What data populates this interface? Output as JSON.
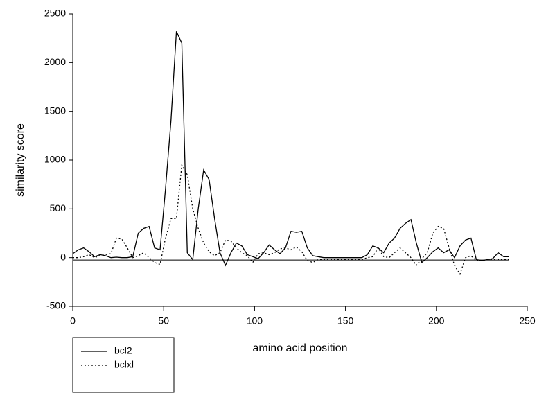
{
  "chart_data": {
    "type": "line",
    "xlabel": "amino acid position",
    "ylabel": "similarity score",
    "xlim": [
      0,
      250
    ],
    "xticks": [
      0,
      50,
      100,
      150,
      200,
      250
    ],
    "ylim": [
      -500,
      2500
    ],
    "yticks": [
      -500,
      0,
      500,
      1000,
      1500,
      2000,
      2500
    ],
    "reference_line": {
      "y": -25,
      "x": [
        0,
        240
      ]
    },
    "legend": "bottom-left",
    "x": [
      0,
      3,
      6,
      9,
      12,
      15,
      18,
      21,
      24,
      27,
      30,
      33,
      36,
      39,
      42,
      45,
      48,
      51,
      54,
      57,
      60,
      63,
      66,
      69,
      72,
      75,
      78,
      81,
      84,
      87,
      90,
      93,
      96,
      99,
      102,
      105,
      108,
      111,
      114,
      117,
      120,
      123,
      126,
      129,
      132,
      135,
      138,
      141,
      144,
      147,
      150,
      153,
      156,
      159,
      162,
      165,
      168,
      171,
      174,
      177,
      180,
      183,
      186,
      189,
      192,
      195,
      198,
      201,
      204,
      207,
      210,
      213,
      216,
      219,
      222,
      225,
      228,
      231,
      234,
      237,
      240
    ],
    "series": [
      {
        "name": "bcl2",
        "color": "#000000",
        "style": "solid",
        "values": [
          40,
          80,
          100,
          60,
          10,
          30,
          20,
          0,
          5,
          0,
          0,
          10,
          250,
          300,
          320,
          100,
          80,
          700,
          1400,
          2320,
          2200,
          50,
          -20,
          500,
          900,
          800,
          400,
          50,
          -80,
          50,
          150,
          120,
          30,
          10,
          -10,
          50,
          130,
          80,
          40,
          100,
          270,
          260,
          270,
          100,
          20,
          10,
          0,
          0,
          0,
          0,
          0,
          0,
          0,
          0,
          30,
          120,
          100,
          50,
          150,
          200,
          300,
          350,
          390,
          150,
          -50,
          0,
          60,
          100,
          50,
          80,
          0,
          120,
          180,
          200,
          -20,
          -30,
          -20,
          -10,
          50,
          10,
          10
        ]
      },
      {
        "name": "bclxl",
        "color": "#000000",
        "style": "dotted",
        "values": [
          0,
          0,
          10,
          30,
          0,
          20,
          30,
          40,
          200,
          190,
          100,
          0,
          20,
          50,
          0,
          -50,
          -70,
          200,
          400,
          400,
          950,
          850,
          500,
          300,
          150,
          60,
          20,
          50,
          180,
          170,
          100,
          50,
          20,
          -50,
          40,
          50,
          30,
          50,
          90,
          100,
          80,
          110,
          60,
          -30,
          -50,
          -20,
          -20,
          -20,
          -20,
          -20,
          -20,
          -20,
          -20,
          -20,
          0,
          10,
          100,
          10,
          0,
          50,
          100,
          50,
          0,
          -80,
          -10,
          50,
          250,
          320,
          300,
          100,
          -80,
          -170,
          0,
          20,
          -30,
          -30,
          -20,
          -20,
          -20,
          -20,
          -20
        ]
      }
    ]
  }
}
